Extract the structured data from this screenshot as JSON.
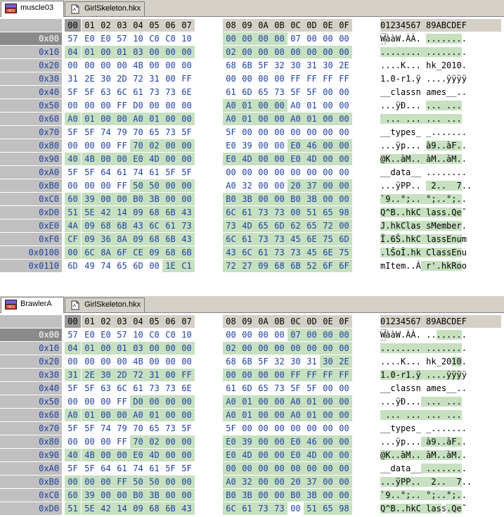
{
  "header": {
    "hex_cols": [
      "00",
      "01",
      "02",
      "03",
      "04",
      "05",
      "06",
      "07",
      "08",
      "09",
      "0A",
      "0B",
      "0C",
      "0D",
      "0E",
      "0F"
    ],
    "ascii": "01234567 89ABCDEF"
  },
  "panes": [
    {
      "tabs": [
        {
          "label": "muscle03",
          "icon": "hex-editor-icon",
          "active": true
        },
        {
          "label": "GirlSkeleton.hkx",
          "icon": "document-icon",
          "active": false
        }
      ],
      "rows": [
        {
          "offset": "0x00",
          "bytes": [
            "57",
            "E0",
            "E0",
            "57",
            "10",
            "C0",
            "C0",
            "10",
            "00",
            "00",
            "00",
            "00",
            "07",
            "00",
            "00",
            "00"
          ],
          "ascii": "WààW.ÀÀ. ........"
        },
        {
          "offset": "0x10",
          "bytes": [
            "04",
            "01",
            "00",
            "01",
            "03",
            "00",
            "00",
            "00",
            "02",
            "00",
            "00",
            "00",
            "00",
            "00",
            "00",
            "00"
          ],
          "ascii": "........ ........"
        },
        {
          "offset": "0x20",
          "bytes": [
            "00",
            "00",
            "00",
            "00",
            "4B",
            "00",
            "00",
            "00",
            "68",
            "6B",
            "5F",
            "32",
            "30",
            "31",
            "30",
            "2E"
          ],
          "ascii": "....K... hk_2010."
        },
        {
          "offset": "0x30",
          "bytes": [
            "31",
            "2E",
            "30",
            "2D",
            "72",
            "31",
            "00",
            "FF",
            "00",
            "00",
            "00",
            "00",
            "FF",
            "FF",
            "FF",
            "FF"
          ],
          "ascii": "1.0-r1.ÿ ....ÿÿÿÿ"
        },
        {
          "offset": "0x40",
          "bytes": [
            "5F",
            "5F",
            "63",
            "6C",
            "61",
            "73",
            "73",
            "6E",
            "61",
            "6D",
            "65",
            "73",
            "5F",
            "5F",
            "00",
            "00"
          ],
          "ascii": "__classn ames__.."
        },
        {
          "offset": "0x50",
          "bytes": [
            "00",
            "00",
            "00",
            "FF",
            "D0",
            "00",
            "00",
            "00",
            "A0",
            "01",
            "00",
            "00",
            "A0",
            "01",
            "00",
            "00"
          ],
          "ascii": "...ÿÐ... ... ..."
        },
        {
          "offset": "0x60",
          "bytes": [
            "A0",
            "01",
            "00",
            "00",
            "A0",
            "01",
            "00",
            "00",
            "A0",
            "01",
            "00",
            "00",
            "A0",
            "01",
            "00",
            "00"
          ],
          "ascii": " ... ... ... ..."
        },
        {
          "offset": "0x70",
          "bytes": [
            "5F",
            "5F",
            "74",
            "79",
            "70",
            "65",
            "73",
            "5F",
            "5F",
            "00",
            "00",
            "00",
            "00",
            "00",
            "00",
            "00"
          ],
          "ascii": "__types_ _......."
        },
        {
          "offset": "0x80",
          "bytes": [
            "00",
            "00",
            "00",
            "FF",
            "70",
            "02",
            "00",
            "00",
            "E0",
            "39",
            "00",
            "00",
            "E0",
            "46",
            "00",
            "00"
          ],
          "ascii": "...ÿp... à9..àF.."
        },
        {
          "offset": "0x90",
          "bytes": [
            "40",
            "4B",
            "00",
            "00",
            "E0",
            "4D",
            "00",
            "00",
            "E0",
            "4D",
            "00",
            "00",
            "E0",
            "4D",
            "00",
            "00"
          ],
          "ascii": "@K..àM.. àM..àM.."
        },
        {
          "offset": "0xA0",
          "bytes": [
            "5F",
            "5F",
            "64",
            "61",
            "74",
            "61",
            "5F",
            "5F",
            "00",
            "00",
            "00",
            "00",
            "00",
            "00",
            "00",
            "00"
          ],
          "ascii": "__data__ ........"
        },
        {
          "offset": "0xB0",
          "bytes": [
            "00",
            "00",
            "00",
            "FF",
            "50",
            "50",
            "00",
            "00",
            "A0",
            "32",
            "00",
            "00",
            "20",
            "37",
            "00",
            "00"
          ],
          "ascii": "...ÿPP..  2..  7.."
        },
        {
          "offset": "0xC0",
          "bytes": [
            "60",
            "39",
            "00",
            "00",
            "B0",
            "3B",
            "00",
            "00",
            "B0",
            "3B",
            "00",
            "00",
            "B0",
            "3B",
            "00",
            "00"
          ],
          "ascii": "`9..°;.. °;..°;.."
        },
        {
          "offset": "0xD0",
          "bytes": [
            "51",
            "5E",
            "42",
            "14",
            "09",
            "68",
            "6B",
            "43",
            "6C",
            "61",
            "73",
            "73",
            "00",
            "51",
            "65",
            "98"
          ],
          "ascii": "Q^B..hkC lass.Qe˜"
        },
        {
          "offset": "0xE0",
          "bytes": [
            "4A",
            "09",
            "68",
            "6B",
            "43",
            "6C",
            "61",
            "73",
            "73",
            "4D",
            "65",
            "6D",
            "62",
            "65",
            "72",
            "00"
          ],
          "ascii": "J.hkClas sMember."
        },
        {
          "offset": "0xF0",
          "bytes": [
            "CF",
            "09",
            "36",
            "8A",
            "09",
            "68",
            "6B",
            "43",
            "6C",
            "61",
            "73",
            "73",
            "45",
            "6E",
            "75",
            "6D"
          ],
          "ascii": "Ï.6Š.hkC lassEnum"
        },
        {
          "offset": "0x0100",
          "bytes": [
            "00",
            "6C",
            "8A",
            "6F",
            "CE",
            "09",
            "68",
            "6B",
            "43",
            "6C",
            "61",
            "73",
            "73",
            "45",
            "6E",
            "75"
          ],
          "ascii": ".lŠoÎ.hk ClassEnu"
        },
        {
          "offset": "0x0110",
          "bytes": [
            "6D",
            "49",
            "74",
            "65",
            "6D",
            "00",
            "1E",
            "C1",
            "72",
            "27",
            "09",
            "68",
            "6B",
            "52",
            "6F",
            "6F"
          ],
          "ascii": "mItem..Á r'.hkRoo"
        }
      ]
    },
    {
      "tabs": [
        {
          "label": "BrawlerA",
          "icon": "hex-editor-icon",
          "active": true
        },
        {
          "label": "GirlSkeleton.hkx",
          "icon": "document-icon",
          "active": false
        }
      ],
      "rows": [
        {
          "offset": "0x00",
          "bytes": [
            "57",
            "E0",
            "E0",
            "57",
            "10",
            "C0",
            "C0",
            "10",
            "00",
            "00",
            "00",
            "00",
            "07",
            "00",
            "00",
            "00"
          ],
          "ascii": "WààW.ÀÀ. ........"
        },
        {
          "offset": "0x10",
          "bytes": [
            "04",
            "01",
            "00",
            "01",
            "03",
            "00",
            "00",
            "00",
            "02",
            "00",
            "00",
            "00",
            "00",
            "00",
            "00",
            "00"
          ],
          "ascii": "........ ........"
        },
        {
          "offset": "0x20",
          "bytes": [
            "00",
            "00",
            "00",
            "00",
            "4B",
            "00",
            "00",
            "00",
            "68",
            "6B",
            "5F",
            "32",
            "30",
            "31",
            "30",
            "2E"
          ],
          "ascii": "....K... hk_2010."
        },
        {
          "offset": "0x30",
          "bytes": [
            "31",
            "2E",
            "30",
            "2D",
            "72",
            "31",
            "00",
            "FF",
            "00",
            "00",
            "00",
            "00",
            "FF",
            "FF",
            "FF",
            "FF"
          ],
          "ascii": "1.0-r1.ÿ ....ÿÿÿÿ"
        },
        {
          "offset": "0x40",
          "bytes": [
            "5F",
            "5F",
            "63",
            "6C",
            "61",
            "73",
            "73",
            "6E",
            "61",
            "6D",
            "65",
            "73",
            "5F",
            "5F",
            "00",
            "00"
          ],
          "ascii": "__classn ames__.."
        },
        {
          "offset": "0x50",
          "bytes": [
            "00",
            "00",
            "00",
            "FF",
            "D0",
            "00",
            "00",
            "00",
            "A0",
            "01",
            "00",
            "00",
            "A0",
            "01",
            "00",
            "00"
          ],
          "ascii": "...ÿÐ... ... ..."
        },
        {
          "offset": "0x60",
          "bytes": [
            "A0",
            "01",
            "00",
            "00",
            "A0",
            "01",
            "00",
            "00",
            "A0",
            "01",
            "00",
            "00",
            "A0",
            "01",
            "00",
            "00"
          ],
          "ascii": " ... ... ... ..."
        },
        {
          "offset": "0x70",
          "bytes": [
            "5F",
            "5F",
            "74",
            "79",
            "70",
            "65",
            "73",
            "5F",
            "5F",
            "00",
            "00",
            "00",
            "00",
            "00",
            "00",
            "00"
          ],
          "ascii": "__types_ _......."
        },
        {
          "offset": "0x80",
          "bytes": [
            "00",
            "00",
            "00",
            "FF",
            "70",
            "02",
            "00",
            "00",
            "E0",
            "39",
            "00",
            "00",
            "E0",
            "46",
            "00",
            "00"
          ],
          "ascii": "...ÿp... à9..àF.."
        },
        {
          "offset": "0x90",
          "bytes": [
            "40",
            "4B",
            "00",
            "00",
            "E0",
            "4D",
            "00",
            "00",
            "E0",
            "4D",
            "00",
            "00",
            "E0",
            "4D",
            "00",
            "00"
          ],
          "ascii": "@K..àM.. àM..àM.."
        },
        {
          "offset": "0xA0",
          "bytes": [
            "5F",
            "5F",
            "64",
            "61",
            "74",
            "61",
            "5F",
            "5F",
            "00",
            "00",
            "00",
            "00",
            "00",
            "00",
            "00",
            "00"
          ],
          "ascii": "__data__ ........"
        },
        {
          "offset": "0xB0",
          "bytes": [
            "00",
            "00",
            "00",
            "FF",
            "50",
            "50",
            "00",
            "00",
            "A0",
            "32",
            "00",
            "00",
            "20",
            "37",
            "00",
            "00"
          ],
          "ascii": "...ÿPP..  2..  7.."
        },
        {
          "offset": "0xC0",
          "bytes": [
            "60",
            "39",
            "00",
            "00",
            "B0",
            "3B",
            "00",
            "00",
            "B0",
            "3B",
            "00",
            "00",
            "B0",
            "3B",
            "00",
            "00"
          ],
          "ascii": "`9..°;.. °;..°;.."
        },
        {
          "offset": "0xD0",
          "bytes": [
            "51",
            "5E",
            "42",
            "14",
            "09",
            "68",
            "6B",
            "43",
            "6C",
            "61",
            "73",
            "73",
            "00",
            "51",
            "65",
            "98"
          ],
          "ascii": "Q^B..hkC lass.Qe˜"
        }
      ]
    }
  ],
  "colors": {
    "highlight": "#c6e0c0",
    "offset_text": "#1f3fa0",
    "chrome": "#d4d0c8",
    "gutter": "#c0c0c0"
  }
}
